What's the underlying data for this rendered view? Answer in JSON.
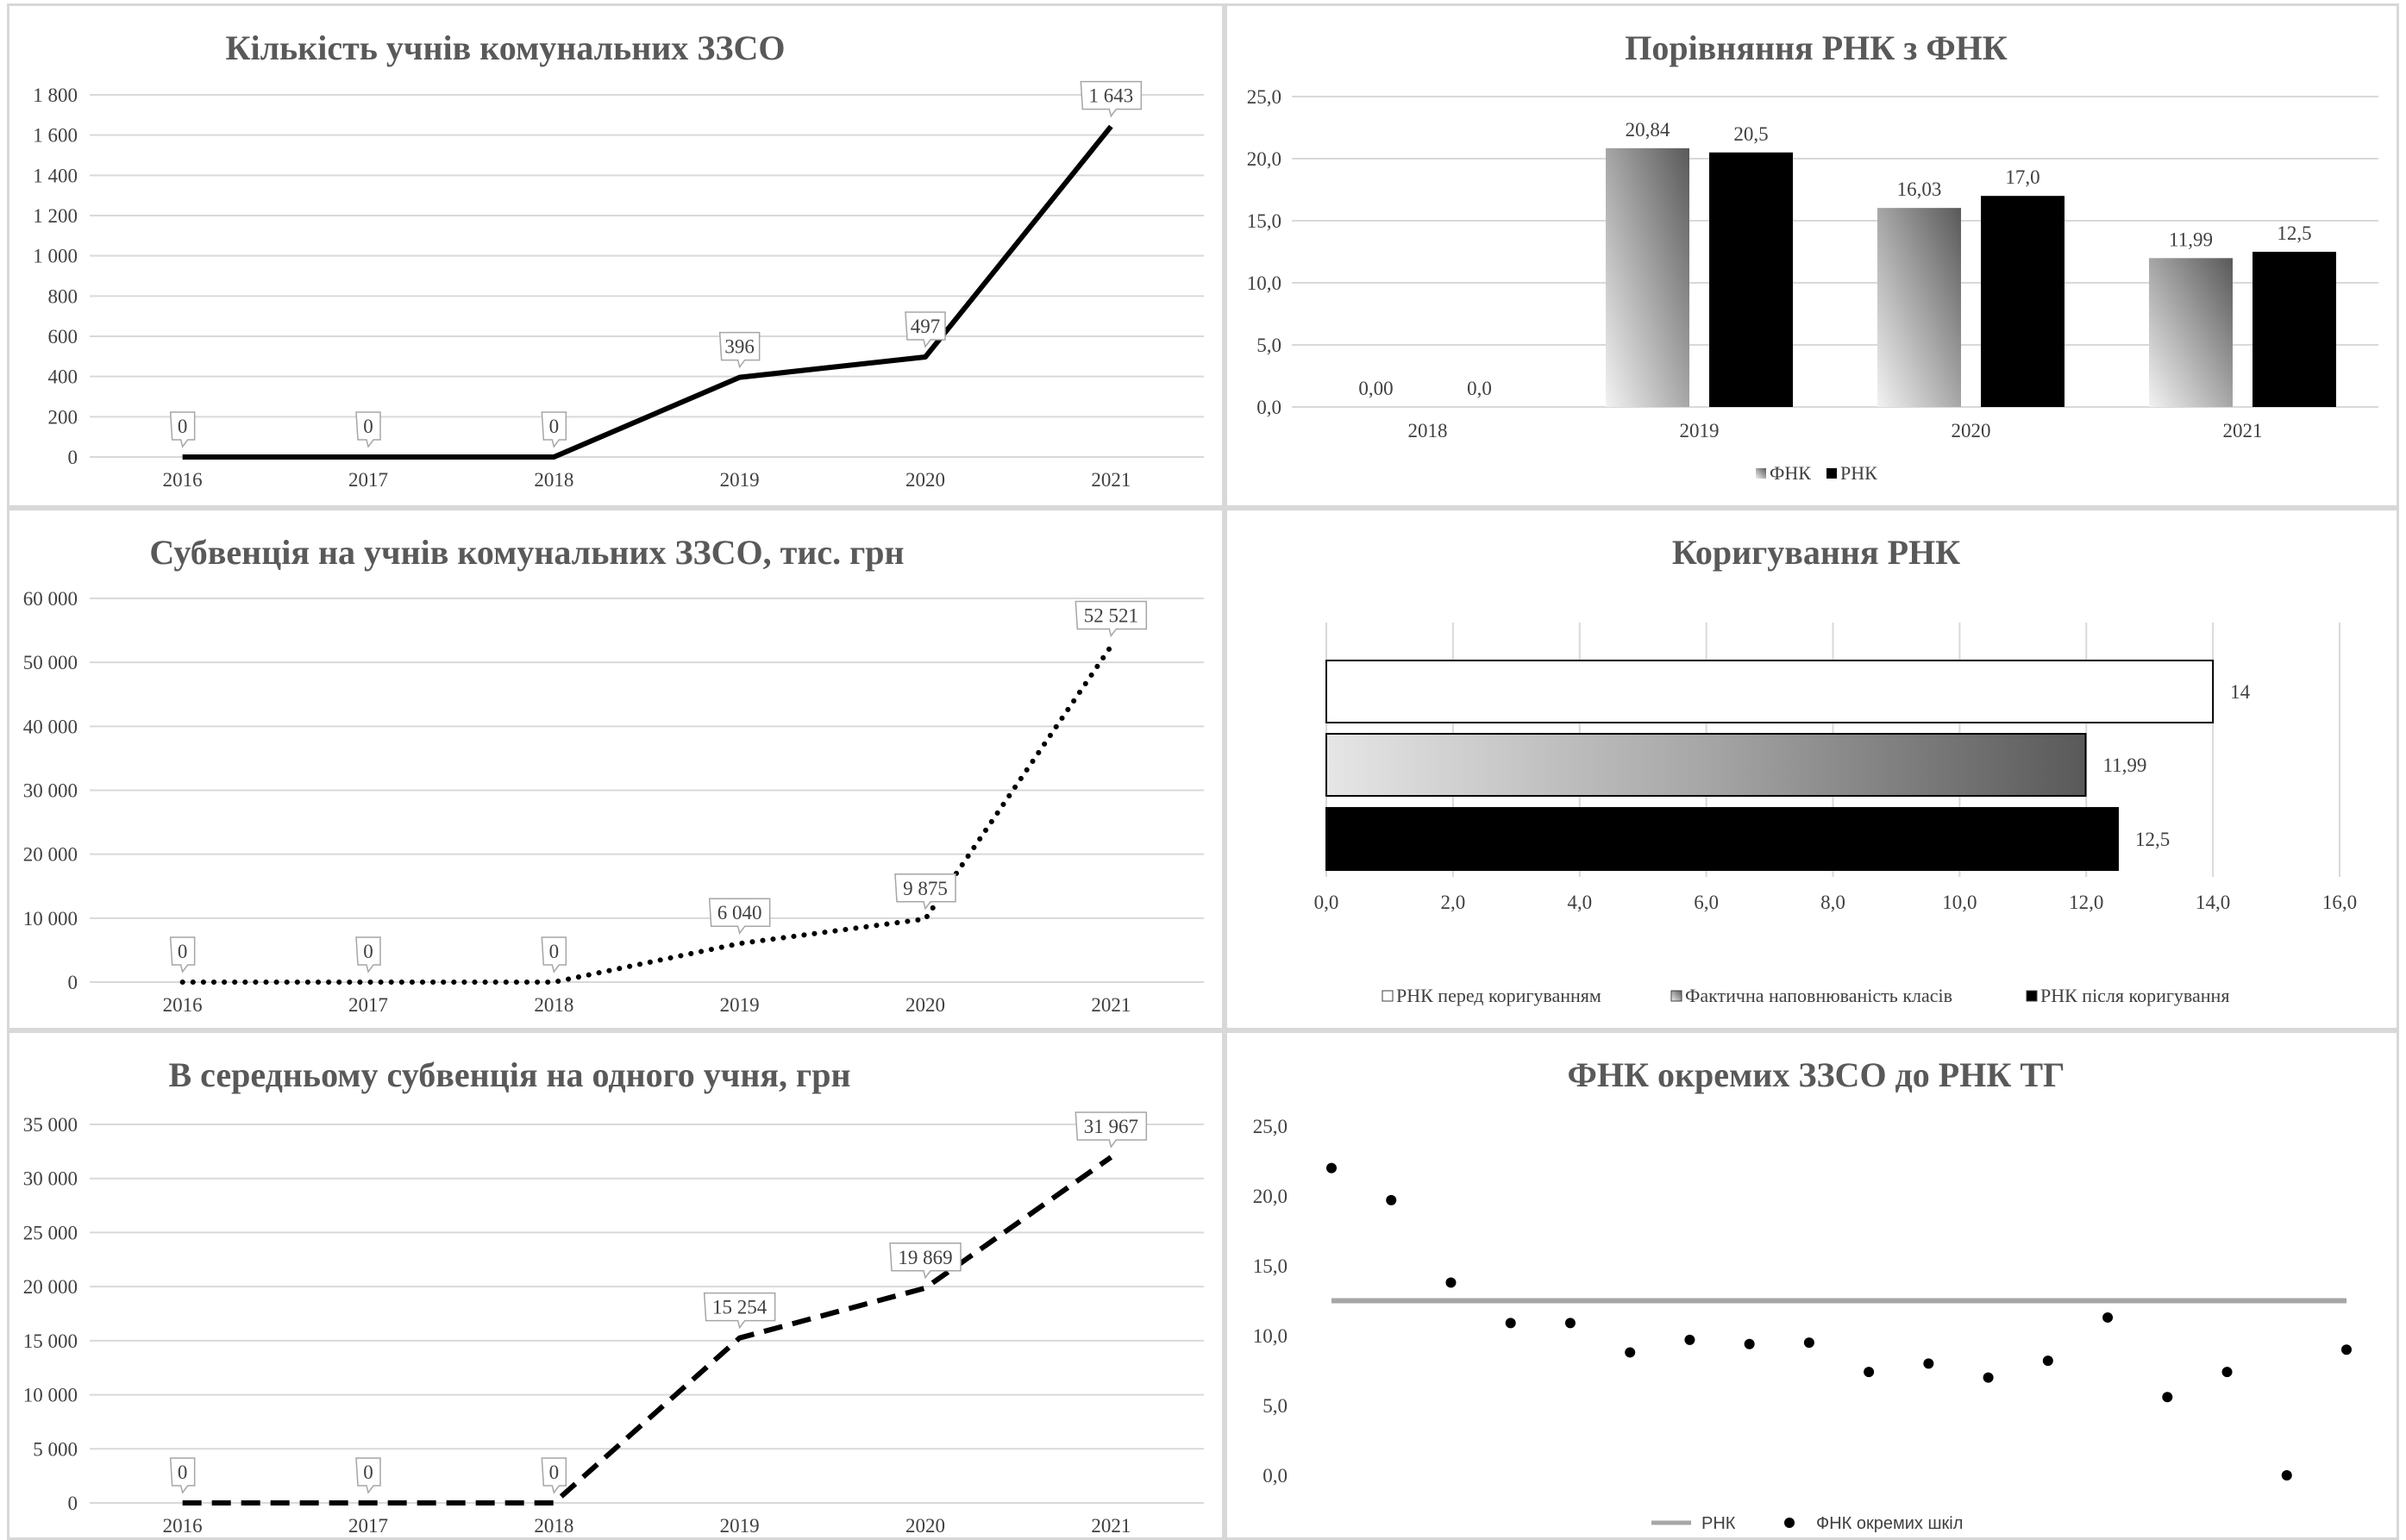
{
  "chart_data": [
    {
      "id": "c1",
      "type": "line",
      "title": "Кількість учнів комунальних ЗЗСО",
      "categories": [
        "2016",
        "2017",
        "2018",
        "2019",
        "2020",
        "2021"
      ],
      "values": [
        0,
        0,
        0,
        396,
        497,
        1643
      ],
      "data_labels": [
        "0",
        "0",
        "0",
        "396",
        "497",
        "1 643"
      ],
      "ylim": [
        0,
        1800
      ],
      "yticks": [
        "0",
        "200",
        "400",
        "600",
        "800",
        "1 000",
        "1 200",
        "1 400",
        "1 600",
        "1 800"
      ],
      "line_style": "solid",
      "grid": true
    },
    {
      "id": "c2",
      "type": "bar",
      "title": "Порівняння РНК з ФНК",
      "categories": [
        "2018",
        "2019",
        "2020",
        "2021"
      ],
      "series": [
        {
          "name": "ФНК",
          "values": [
            0.0,
            20.84,
            16.03,
            11.99
          ],
          "labels": [
            "0,00",
            "20,84",
            "16,03",
            "11,99"
          ],
          "color": "gradient-gray"
        },
        {
          "name": "РНК",
          "values": [
            0.0,
            20.5,
            17.0,
            12.5
          ],
          "labels": [
            "0,0",
            "20,5",
            "17,0",
            "12,5"
          ],
          "color": "#000000"
        }
      ],
      "ylim": [
        0,
        25
      ],
      "yticks": [
        "0,0",
        "5,0",
        "10,0",
        "15,0",
        "20,0",
        "25,0"
      ],
      "legend": "bottom",
      "grid": true
    },
    {
      "id": "c3",
      "type": "line",
      "title": "Субвенція на учнів комунальних ЗЗСО, тис. грн",
      "categories": [
        "2016",
        "2017",
        "2018",
        "2019",
        "2020",
        "2021"
      ],
      "values": [
        0,
        0,
        0,
        6040,
        9875,
        52521
      ],
      "data_labels": [
        "0",
        "0",
        "0",
        "6 040",
        "9 875",
        "52 521"
      ],
      "ylim": [
        0,
        60000
      ],
      "yticks": [
        "0",
        "10 000",
        "20 000",
        "30 000",
        "40 000",
        "50 000",
        "60 000"
      ],
      "line_style": "dotted",
      "grid": true
    },
    {
      "id": "c4",
      "type": "bar",
      "orientation": "horizontal",
      "title": "Коригування РНК",
      "series": [
        {
          "name": "РНК перед коригуванням",
          "value": 14,
          "label": "14",
          "color": "#ffffff"
        },
        {
          "name": "Фактична наповнюваність класів",
          "value": 11.99,
          "label": "11,99",
          "color": "gradient-gray"
        },
        {
          "name": "РНК після коригування",
          "value": 12.5,
          "label": "12,5",
          "color": "#000000"
        }
      ],
      "xlim": [
        0,
        16
      ],
      "xticks": [
        "0,0",
        "2,0",
        "4,0",
        "6,0",
        "8,0",
        "10,0",
        "12,0",
        "14,0",
        "16,0"
      ],
      "legend": "bottom",
      "grid": true
    },
    {
      "id": "c5",
      "type": "line",
      "title": "В середньому субвенція на одного учня, грн",
      "categories": [
        "2016",
        "2017",
        "2018",
        "2019",
        "2020",
        "2021"
      ],
      "values": [
        0,
        0,
        0,
        15254,
        19869,
        31967
      ],
      "data_labels": [
        "0",
        "0",
        "0",
        "15 254",
        "19 869",
        "31 967"
      ],
      "ylim": [
        0,
        35000
      ],
      "yticks": [
        "0",
        "5 000",
        "10 000",
        "15 000",
        "20 000",
        "25 000",
        "30 000",
        "35 000"
      ],
      "line_style": "dashed",
      "grid": true
    },
    {
      "id": "c6",
      "type": "scatter",
      "title": "ФНК окремих ЗЗСО до РНК ТГ",
      "points": [
        22.0,
        19.7,
        13.8,
        10.9,
        10.9,
        8.8,
        9.7,
        9.4,
        9.5,
        7.4,
        8.0,
        7.0,
        8.2,
        11.3,
        5.6,
        7.4,
        0.0,
        9.0
      ],
      "reference_line": {
        "name": "РНК",
        "value": 12.5,
        "color": "#a6a6a6"
      },
      "scatter_name": "ФНК окремих шкіл",
      "ylim": [
        0,
        25
      ],
      "yticks": [
        "0,0",
        "5,0",
        "10,0",
        "15,0",
        "20,0",
        "25,0"
      ],
      "legend": "bottom",
      "grid": false
    }
  ]
}
